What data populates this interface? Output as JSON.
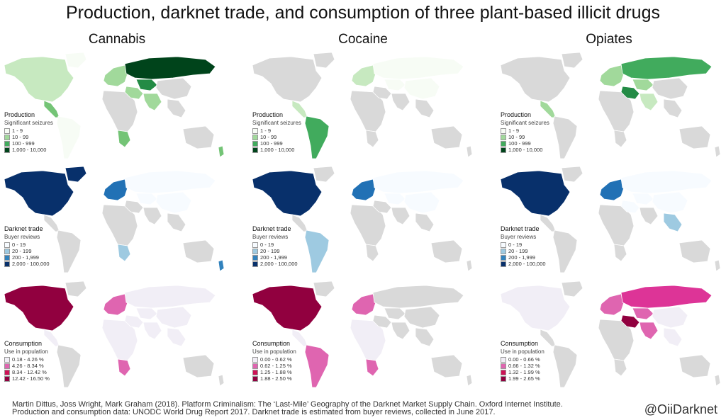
{
  "title": "Production, darknet trade, and consumption of three plant-based illicit drugs",
  "columns": [
    "Cannabis",
    "Cocaine",
    "Opiates"
  ],
  "rows": [
    {
      "key": "production",
      "title": "Production",
      "subtitle": "Significant seizures",
      "items": [
        {
          "label": "1 - 9",
          "color": "#f7fcf5"
        },
        {
          "label": "10 - 99",
          "color": "#a1d99b"
        },
        {
          "label": "100 - 999",
          "color": "#41ab5d"
        },
        {
          "label": "1,000 - 10,000",
          "color": "#00441b"
        }
      ]
    },
    {
      "key": "trade",
      "title": "Darknet trade",
      "subtitle": "Buyer reviews",
      "items": [
        {
          "label": "0 - 19",
          "color": "#f7fbff"
        },
        {
          "label": "20 - 199",
          "color": "#9ecae1"
        },
        {
          "label": "200 - 1,999",
          "color": "#3182bd"
        },
        {
          "label": "2,000 - 100,000",
          "color": "#08306b"
        }
      ]
    },
    {
      "key": "consumption",
      "title": "Consumption",
      "subtitle": "Use in population",
      "legends": [
        [
          {
            "label": "0.18 - 4.26 %",
            "color": "#f1eef6"
          },
          {
            "label": "4.26 - 8.34 %",
            "color": "#df65b0"
          },
          {
            "label": "8.34 - 12.42 %",
            "color": "#ce1256"
          },
          {
            "label": "12.42 - 16.50 %",
            "color": "#91003f"
          }
        ],
        [
          {
            "label": "0.00 - 0.62 %",
            "color": "#f1eef6"
          },
          {
            "label": "0.62 - 1.25 %",
            "color": "#df65b0"
          },
          {
            "label": "1.25 - 1.88 %",
            "color": "#ce1256"
          },
          {
            "label": "1.88 - 2.50 %",
            "color": "#91003f"
          }
        ],
        [
          {
            "label": "0.00 - 0.66 %",
            "color": "#f1eef6"
          },
          {
            "label": "0.66 - 1.32 %",
            "color": "#df65b0"
          },
          {
            "label": "1.32 - 1.99 %",
            "color": "#ce1256"
          },
          {
            "label": "1.99 - 2.65 %",
            "color": "#91003f"
          }
        ]
      ]
    }
  ],
  "map_colors": {
    "nodata": "#d9d9d9",
    "border": "#ffffff"
  },
  "choropleth": {
    "cannabis": {
      "production": {
        "north_america": "#c7e9c0",
        "greenland": "#f7fcf5",
        "central_america": "#74c476",
        "south_america": "#f7fcf5",
        "europe": "#a1d99b",
        "russia": "#00441b",
        "central_asia": "#238b45",
        "middle_east": "#a1d99b",
        "africa": "#d9d9d9",
        "southern_africa": "#74c476",
        "south_asia": "#a1d99b",
        "se_asia": "#d9d9d9",
        "china": "#d9d9d9",
        "australia": "#d9d9d9",
        "new_zealand": "#74c476"
      },
      "trade": {
        "north_america": "#08306b",
        "greenland": "#08306b",
        "central_america": "#d9d9d9",
        "south_america": "#d9d9d9",
        "europe": "#2171b5",
        "russia": "#f7fbff",
        "central_asia": "#f7fbff",
        "middle_east": "#d9d9d9",
        "africa": "#d9d9d9",
        "southern_africa": "#9ecae1",
        "south_asia": "#d9d9d9",
        "se_asia": "#d9d9d9",
        "china": "#f7fbff",
        "australia": "#d9d9d9",
        "new_zealand": "#3182bd"
      },
      "consumption": {
        "north_america": "#91003f",
        "greenland": "#d9d9d9",
        "central_america": "#f1eef6",
        "south_america": "#d9d9d9",
        "europe": "#df65b0",
        "russia": "#f1eef6",
        "central_asia": "#f1eef6",
        "middle_east": "#f1eef6",
        "africa": "#f1eef6",
        "southern_africa": "#df65b0",
        "south_asia": "#f1eef6",
        "se_asia": "#f1eef6",
        "china": "#f1eef6",
        "australia": "#d9d9d9",
        "new_zealand": "#d9d9d9"
      }
    },
    "cocaine": {
      "production": {
        "north_america": "#d9d9d9",
        "greenland": "#d9d9d9",
        "central_america": "#c7e9c0",
        "south_america": "#41ab5d",
        "europe": "#c7e9c0",
        "russia": "#f7fcf5",
        "central_asia": "#f7fcf5",
        "middle_east": "#d9d9d9",
        "africa": "#d9d9d9",
        "southern_africa": "#d9d9d9",
        "south_asia": "#d9d9d9",
        "se_asia": "#d9d9d9",
        "china": "#f7fcf5",
        "australia": "#d9d9d9",
        "new_zealand": "#d9d9d9"
      },
      "trade": {
        "north_america": "#08306b",
        "greenland": "#d9d9d9",
        "central_america": "#d9d9d9",
        "south_america": "#9ecae1",
        "europe": "#2171b5",
        "russia": "#f7fbff",
        "central_asia": "#f7fbff",
        "middle_east": "#d9d9d9",
        "africa": "#d9d9d9",
        "southern_africa": "#d9d9d9",
        "south_asia": "#d9d9d9",
        "se_asia": "#d9d9d9",
        "china": "#f7fbff",
        "australia": "#d9d9d9",
        "new_zealand": "#d9d9d9"
      },
      "consumption": {
        "north_america": "#91003f",
        "greenland": "#d9d9d9",
        "central_america": "#f1eef6",
        "south_america": "#df65b0",
        "europe": "#df65b0",
        "russia": "#d9d9d9",
        "central_asia": "#d9d9d9",
        "middle_east": "#d9d9d9",
        "africa": "#f1eef6",
        "southern_africa": "#df65b0",
        "south_asia": "#d9d9d9",
        "se_asia": "#d9d9d9",
        "china": "#d9d9d9",
        "australia": "#d9d9d9",
        "new_zealand": "#d9d9d9"
      }
    },
    "opiates": {
      "production": {
        "north_america": "#d9d9d9",
        "greenland": "#d9d9d9",
        "central_america": "#a1d99b",
        "south_america": "#d9d9d9",
        "europe": "#a1d99b",
        "russia": "#41ab5d",
        "central_asia": "#a1d99b",
        "middle_east": "#238b45",
        "africa": "#d9d9d9",
        "southern_africa": "#d9d9d9",
        "south_asia": "#c7e9c0",
        "se_asia": "#d9d9d9",
        "china": "#d9d9d9",
        "australia": "#d9d9d9",
        "new_zealand": "#d9d9d9"
      },
      "trade": {
        "north_america": "#08306b",
        "greenland": "#d9d9d9",
        "central_america": "#d9d9d9",
        "south_america": "#d9d9d9",
        "europe": "#2171b5",
        "russia": "#f7fbff",
        "central_asia": "#f7fbff",
        "middle_east": "#f7fbff",
        "africa": "#d9d9d9",
        "southern_africa": "#d9d9d9",
        "south_asia": "#d9d9d9",
        "se_asia": "#9ecae1",
        "china": "#f7fbff",
        "australia": "#d9d9d9",
        "new_zealand": "#d9d9d9"
      },
      "consumption": {
        "north_america": "#f1eef6",
        "greenland": "#d9d9d9",
        "central_america": "#d9d9d9",
        "south_america": "#d9d9d9",
        "europe": "#df65b0",
        "russia": "#dd3497",
        "central_asia": "#df65b0",
        "middle_east": "#91003f",
        "africa": "#d9d9d9",
        "southern_africa": "#d9d9d9",
        "south_asia": "#df65b0",
        "se_asia": "#f1eef6",
        "china": "#f1eef6",
        "australia": "#d9d9d9",
        "new_zealand": "#d9d9d9"
      }
    }
  },
  "footer": {
    "line1": "Martin Dittus, Joss Wright, Mark Graham (2018). Platform Criminalism: The ‘Last-Mile’ Geography of the Darknet Market Supply Chain. Oxford Internet Institute.",
    "line2": "Production and consumption data: UNODC World Drug Report 2017. Darknet trade is estimated from buyer reviews, collected in June 2017."
  },
  "handle": "@OiiDarknet"
}
